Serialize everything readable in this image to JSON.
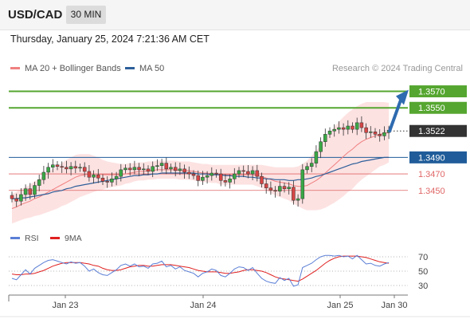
{
  "header": {
    "symbol": "USD/CAD",
    "timeframe": "30 MIN"
  },
  "datetime": "Thursday, January 25, 2024 7:21:36 AM CET",
  "legend": {
    "ma20_label": "MA 20 + Bollinger Bands",
    "ma50_label": "MA 50",
    "credit": "Research © 2024 Trading Central"
  },
  "rsi_legend": {
    "rsi_label": "RSI",
    "ma_label": "9MA"
  },
  "colors": {
    "ma20": "#f08080",
    "ma50": "#2d5f9a",
    "band_fill": "#fde2e2",
    "resistance": "#55a630",
    "support": "#e06666",
    "pivot": "#1f5c99",
    "up": "#3aa845",
    "down": "#d64545",
    "arrow": "#2e6bb0",
    "rsi": "#5b7fd6",
    "rsi_ma": "#e02020",
    "current": "#333333"
  },
  "chart_data": [
    {
      "type": "candlestick",
      "title": "USD/CAD",
      "x_labels": [
        "Jan 23",
        "Jan 24",
        "Jan 25",
        "Jan 30"
      ],
      "ylim": [
        1.3415,
        1.3585
      ],
      "levels": [
        {
          "value": 1.357,
          "label": "1.3570",
          "kind": "resistance"
        },
        {
          "value": 1.355,
          "label": "1.3550",
          "kind": "resistance"
        },
        {
          "value": 1.3522,
          "label": "1.3522",
          "kind": "current"
        },
        {
          "value": 1.349,
          "label": "1.3490",
          "kind": "pivot"
        },
        {
          "value": 1.347,
          "label": "1.3470",
          "kind": "support"
        },
        {
          "value": 1.345,
          "label": "1.3450",
          "kind": "support"
        }
      ],
      "forecast_target": 1.357,
      "close": [
        1.344,
        1.3437,
        1.3445,
        1.3452,
        1.3445,
        1.3456,
        1.3463,
        1.3472,
        1.3478,
        1.3481,
        1.3479,
        1.3478,
        1.3476,
        1.3479,
        1.3477,
        1.3478,
        1.3473,
        1.3466,
        1.3469,
        1.3465,
        1.3461,
        1.346,
        1.3464,
        1.3467,
        1.3475,
        1.3477,
        1.3475,
        1.3478,
        1.3475,
        1.3476,
        1.3473,
        1.3479,
        1.348,
        1.3483,
        1.3476,
        1.3478,
        1.3474,
        1.3476,
        1.3472,
        1.347,
        1.3468,
        1.3462,
        1.3466,
        1.3468,
        1.3471,
        1.347,
        1.3462,
        1.346,
        1.3464,
        1.347,
        1.3474,
        1.3473,
        1.347,
        1.3474,
        1.3467,
        1.3458,
        1.3453,
        1.345,
        1.3449,
        1.3455,
        1.3452,
        1.3454,
        1.3438,
        1.344,
        1.3475,
        1.3479,
        1.3483,
        1.3497,
        1.3509,
        1.3518,
        1.3522,
        1.3524,
        1.3526,
        1.3524,
        1.3528,
        1.3524,
        1.3532,
        1.3526,
        1.352,
        1.3521,
        1.3518,
        1.3516,
        1.352,
        1.3523
      ],
      "ma20": [
        1.3428,
        1.343,
        1.3433,
        1.3435,
        1.3437,
        1.344,
        1.3442,
        1.3445,
        1.3448,
        1.3451,
        1.3454,
        1.3457,
        1.346,
        1.3463,
        1.3466,
        1.3468,
        1.3469,
        1.347,
        1.347,
        1.347,
        1.3469,
        1.3469,
        1.3469,
        1.3469,
        1.3469,
        1.347,
        1.3471,
        1.3472,
        1.3473,
        1.3473,
        1.3474,
        1.3474,
        1.3475,
        1.3475,
        1.3475,
        1.3475,
        1.3475,
        1.3474,
        1.3474,
        1.3474,
        1.3473,
        1.3472,
        1.3471,
        1.3471,
        1.347,
        1.347,
        1.3469,
        1.3469,
        1.3469,
        1.3469,
        1.3469,
        1.3469,
        1.3469,
        1.3469,
        1.3468,
        1.3467,
        1.3465,
        1.3463,
        1.3461,
        1.346,
        1.3459,
        1.3458,
        1.3456,
        1.3455,
        1.3455,
        1.3456,
        1.3459,
        1.3462,
        1.3466,
        1.3471,
        1.3476,
        1.3481,
        1.3486,
        1.3491,
        1.3496,
        1.35,
        1.3505,
        1.3509,
        1.3512,
        1.3514,
        1.3516,
        1.3518,
        1.3519,
        1.352
      ],
      "ma50": [
        1.344,
        1.344,
        1.3441,
        1.3441,
        1.3442,
        1.3443,
        1.3444,
        1.3445,
        1.3446,
        1.3448,
        1.3449,
        1.345,
        1.3452,
        1.3453,
        1.3455,
        1.3456,
        1.3457,
        1.3458,
        1.3459,
        1.346,
        1.3461,
        1.3462,
        1.3463,
        1.3464,
        1.3465,
        1.3466,
        1.3467,
        1.3468,
        1.3468,
        1.3469,
        1.3469,
        1.347,
        1.347,
        1.3471,
        1.3471,
        1.3471,
        1.3471,
        1.3471,
        1.3471,
        1.3471,
        1.3471,
        1.347,
        1.347,
        1.347,
        1.3469,
        1.3469,
        1.3469,
        1.3468,
        1.3468,
        1.3467,
        1.3467,
        1.3467,
        1.3466,
        1.3466,
        1.3465,
        1.3465,
        1.3464,
        1.3464,
        1.3463,
        1.3463,
        1.3463,
        1.3462,
        1.3462,
        1.3463,
        1.3463,
        1.3464,
        1.3465,
        1.3467,
        1.3468,
        1.347,
        1.3472,
        1.3474,
        1.3476,
        1.3478,
        1.348,
        1.3482,
        1.3483,
        1.3485,
        1.3486,
        1.3487,
        1.3488,
        1.3489,
        1.349,
        1.349
      ],
      "band_width": [
        0.0018,
        0.0018,
        0.0019,
        0.0019,
        0.002,
        0.0021,
        0.0022,
        0.0023,
        0.0024,
        0.0025,
        0.0026,
        0.0026,
        0.0027,
        0.0027,
        0.0027,
        0.0026,
        0.0025,
        0.0024,
        0.0022,
        0.002,
        0.0018,
        0.0016,
        0.0015,
        0.0014,
        0.0013,
        0.0012,
        0.0012,
        0.0011,
        0.0011,
        0.0011,
        0.0011,
        0.0011,
        0.0011,
        0.0011,
        0.0011,
        0.0011,
        0.0011,
        0.0011,
        0.0011,
        0.0011,
        0.0011,
        0.0011,
        0.0011,
        0.0011,
        0.0011,
        0.0011,
        0.0012,
        0.0012,
        0.0012,
        0.0012,
        0.0012,
        0.0012,
        0.0012,
        0.0012,
        0.0013,
        0.0014,
        0.0015,
        0.0016,
        0.0017,
        0.0018,
        0.0019,
        0.002,
        0.0022,
        0.0024,
        0.0027,
        0.003,
        0.0033,
        0.0036,
        0.0039,
        0.0042,
        0.0044,
        0.0046,
        0.0047,
        0.0048,
        0.0048,
        0.0048,
        0.0047,
        0.0046,
        0.0045,
        0.0043,
        0.0041,
        0.0039,
        0.0038,
        0.0036
      ]
    },
    {
      "type": "line",
      "title": "RSI",
      "series_names": [
        "RSI",
        "9MA"
      ],
      "ylim": [
        20,
        80
      ],
      "yticks": [
        70,
        50,
        30
      ],
      "rsi": [
        40,
        38,
        45,
        52,
        46,
        54,
        58,
        62,
        65,
        66,
        64,
        62,
        60,
        63,
        61,
        62,
        57,
        50,
        53,
        48,
        45,
        44,
        48,
        52,
        58,
        60,
        57,
        60,
        56,
        57,
        54,
        60,
        61,
        64,
        56,
        58,
        53,
        56,
        51,
        49,
        47,
        42,
        47,
        49,
        53,
        51,
        44,
        42,
        47,
        53,
        56,
        55,
        51,
        55,
        47,
        40,
        36,
        34,
        33,
        41,
        37,
        40,
        29,
        31,
        55,
        58,
        61,
        66,
        70,
        72,
        72,
        71,
        72,
        70,
        71,
        67,
        72,
        66,
        60,
        61,
        58,
        57,
        60,
        62
      ],
      "ma": [
        46,
        45,
        45,
        46,
        46,
        47,
        49,
        51,
        54,
        57,
        59,
        61,
        62,
        62,
        62,
        62,
        61,
        60,
        58,
        57,
        54,
        52,
        51,
        51,
        52,
        54,
        56,
        57,
        58,
        58,
        57,
        57,
        58,
        59,
        59,
        59,
        58,
        57,
        56,
        55,
        53,
        51,
        50,
        49,
        49,
        49,
        48,
        47,
        47,
        48,
        49,
        51,
        52,
        52,
        51,
        50,
        48,
        45,
        42,
        40,
        39,
        38,
        37,
        36,
        39,
        43,
        47,
        51,
        56,
        61,
        65,
        68,
        70,
        71,
        71,
        71,
        71,
        70,
        69,
        67,
        65,
        63,
        62,
        61
      ]
    }
  ]
}
